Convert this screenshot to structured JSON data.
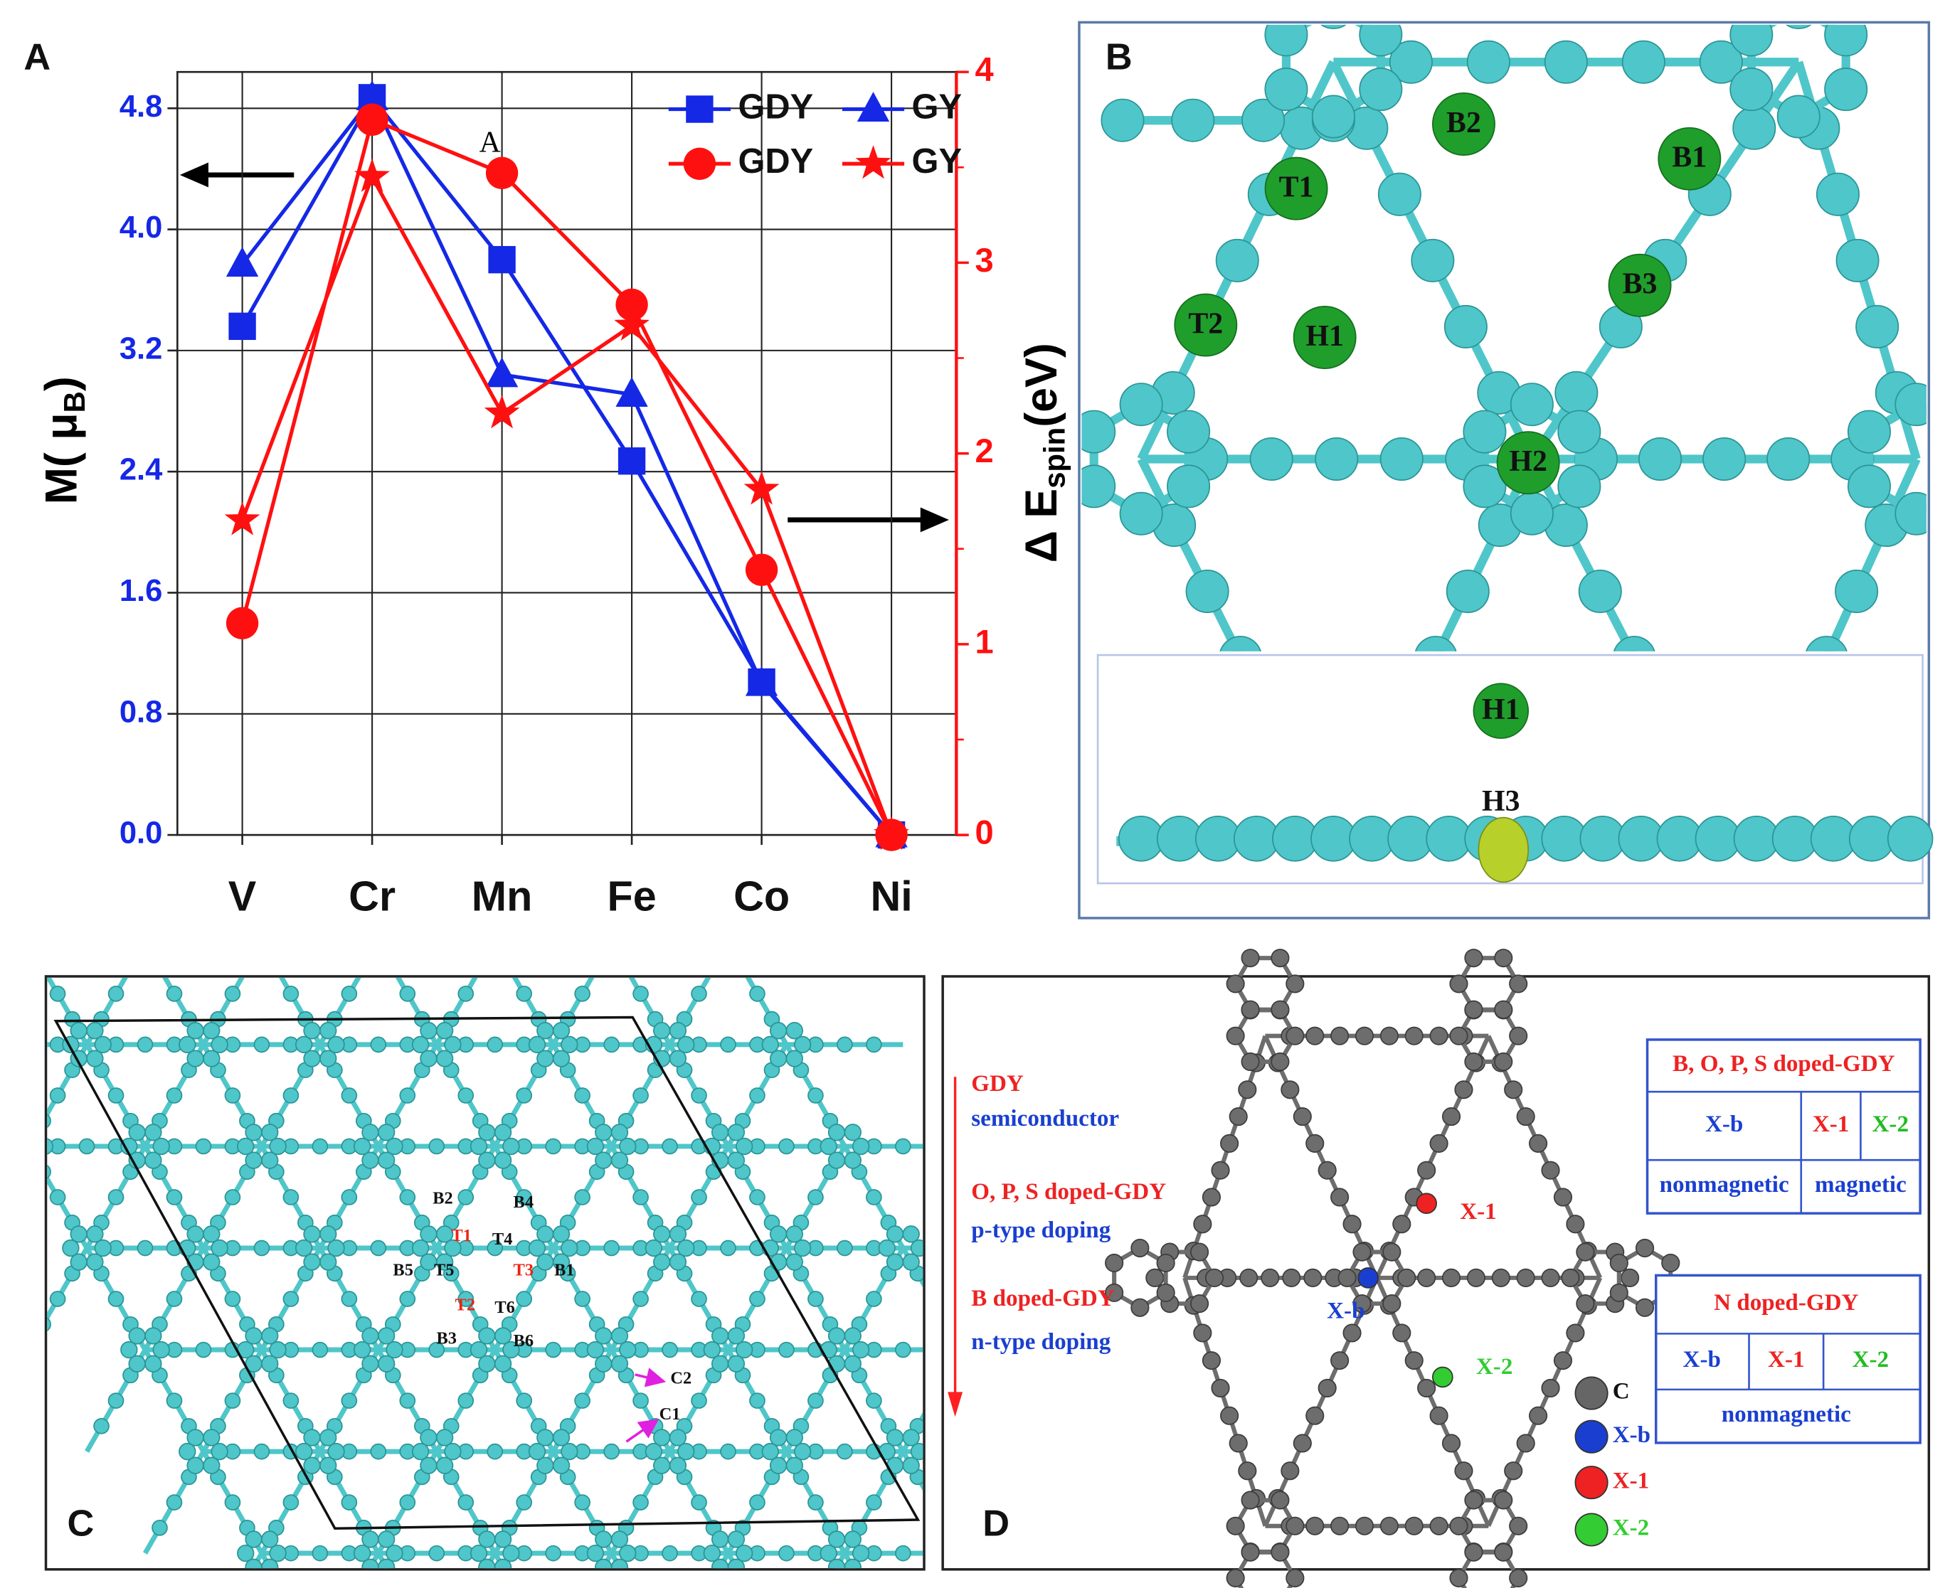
{
  "chart_data": {
    "type": "line",
    "categories": [
      "V",
      "Cr",
      "Mn",
      "Fe",
      "Co",
      "Ni"
    ],
    "ylabel": [
      "M( μ",
      "B",
      ")"
    ],
    "y2label": [
      "Δ E",
      "spin",
      "(eV)"
    ],
    "annotations": [
      "A"
    ],
    "ylim": [
      0,
      5.04
    ],
    "yticks": [
      {
        "value": 0,
        "label": "0.0"
      },
      0.8,
      1.6,
      2.4,
      3.2,
      {
        "value": 4,
        "label": "4.0"
      },
      4.8
    ],
    "y2lim": [
      0,
      4
    ],
    "y2ticks": [
      0,
      1,
      2,
      3,
      4
    ],
    "grid": true,
    "legend": "upper right",
    "series": [
      {
        "name": "GDY",
        "color": "#1428e6",
        "marker": "square",
        "values": [
          3.36,
          4.87,
          3.8,
          2.47,
          1.01,
          0
        ]
      },
      {
        "name": "GY",
        "color": "#1428e6",
        "marker": "triangle",
        "values": [
          3.77,
          4.87,
          3.04,
          2.91,
          1.0,
          0
        ]
      },
      {
        "name": "GDY",
        "color": "#ff1010",
        "marker": "circle",
        "axis": "y2",
        "values": [
          1.11,
          3.75,
          3.47,
          2.78,
          1.39,
          0
        ]
      },
      {
        "name": "GY",
        "color": "#ff1010",
        "marker": "star",
        "axis": "y2",
        "values": [
          1.65,
          3.45,
          2.21,
          2.67,
          1.81,
          0
        ]
      }
    ]
  },
  "panel_labels": [
    "A",
    "B",
    "C",
    "D"
  ],
  "panel_b": {
    "sites": [
      "B2",
      "B1",
      "T1",
      "B3",
      "T2",
      "H1",
      "H2"
    ],
    "side_view_sites": [
      "H1",
      "H3"
    ]
  },
  "panel_c": {
    "sites": [
      "B2",
      "B4",
      "T1",
      "T4",
      "B5",
      "T5",
      "T3",
      "B1",
      "T2",
      "T6",
      "B3",
      "B6",
      "C2",
      "C1"
    ]
  },
  "panel_d": {
    "notes": [
      "GDY",
      "semiconductor",
      "O, P, S doped-GDY",
      "p-type doping",
      "B doped-GDY",
      "n-type doping"
    ],
    "atoms": [
      "X-1",
      "X-b",
      "X-2"
    ],
    "legend": [
      "C",
      "X-b",
      "X-1",
      "X-2"
    ],
    "tables": [
      {
        "title": "B, O, P, S doped-GDY",
        "rows": [
          [
            "X-b",
            "X-1",
            "X-2"
          ],
          [
            "nonmagnetic",
            "magnetic"
          ]
        ]
      },
      {
        "title": "N doped-GDY",
        "rows": [
          [
            "X-b",
            "X-1",
            "X-2"
          ],
          [
            "nonmagnetic"
          ]
        ]
      }
    ]
  }
}
